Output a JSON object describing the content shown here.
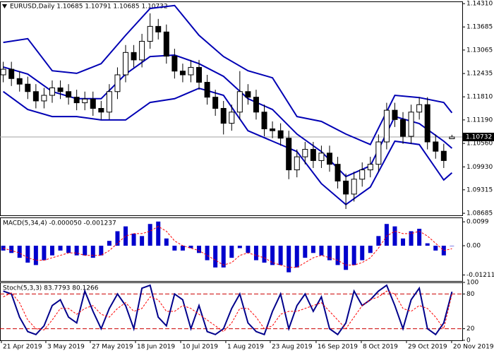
{
  "chart_data": [
    {
      "type": "candlestick",
      "title": "EURUSD,Daily  1.10685 1.10791 1.10685 1.10732",
      "xlim": [
        -0.4,
        55.4
      ],
      "ylim": [
        1.0863,
        1.1437
      ],
      "yticks": [
        {
          "value": 1.1431,
          "label": "1.14310"
        },
        {
          "value": 1.13685,
          "label": "1.13685"
        },
        {
          "value": 1.13065,
          "label": "1.13065"
        },
        {
          "value": 1.12435,
          "label": "1.12435"
        },
        {
          "value": 1.1181,
          "label": "1.11810"
        },
        {
          "value": 1.1119,
          "label": "1.11190"
        },
        {
          "value": 1.1056,
          "label": "1.10560"
        },
        {
          "value": 1.0993,
          "label": "1.09930"
        },
        {
          "value": 1.09315,
          "label": "1.09315"
        },
        {
          "value": 1.08685,
          "label": "1.08685"
        }
      ],
      "last_price": {
        "value": 1.10732,
        "label": "1.10732"
      },
      "up_color": "#ffffff",
      "down_color": "#000000",
      "outline_color": "#000000",
      "open": [
        1.124,
        1.1255,
        1.123,
        1.1215,
        1.1195,
        1.117,
        1.1185,
        1.1205,
        1.1195,
        1.118,
        1.1165,
        1.1175,
        1.115,
        1.114,
        1.1195,
        1.124,
        1.13,
        1.128,
        1.133,
        1.137,
        1.1355,
        1.129,
        1.125,
        1.124,
        1.126,
        1.122,
        1.118,
        1.115,
        1.111,
        1.114,
        1.1195,
        1.118,
        1.114,
        1.1095,
        1.109,
        1.107,
        1.0985,
        1.102,
        1.104,
        1.101,
        1.103,
        1.1,
        1.0955,
        1.092,
        1.096,
        1.0985,
        1.1,
        1.106,
        1.1145,
        1.112,
        1.1075,
        1.114,
        1.116,
        1.106,
        1.1035,
        1.10685
      ],
      "high": [
        1.1275,
        1.1275,
        1.125,
        1.1235,
        1.1215,
        1.1205,
        1.1225,
        1.1225,
        1.1215,
        1.12,
        1.1195,
        1.1195,
        1.117,
        1.1215,
        1.126,
        1.132,
        1.132,
        1.135,
        1.1405,
        1.139,
        1.1375,
        1.131,
        1.127,
        1.128,
        1.128,
        1.124,
        1.12,
        1.117,
        1.116,
        1.125,
        1.1215,
        1.12,
        1.116,
        1.1115,
        1.111,
        1.109,
        1.104,
        1.106,
        1.106,
        1.105,
        1.105,
        1.102,
        1.0975,
        1.098,
        1.1005,
        1.102,
        1.108,
        1.1165,
        1.1165,
        1.114,
        1.116,
        1.118,
        1.118,
        1.108,
        1.1055,
        1.10791
      ],
      "low": [
        1.122,
        1.121,
        1.1195,
        1.1175,
        1.115,
        1.115,
        1.1165,
        1.1175,
        1.116,
        1.1145,
        1.1145,
        1.113,
        1.112,
        1.112,
        1.1175,
        1.122,
        1.126,
        1.126,
        1.131,
        1.1335,
        1.127,
        1.123,
        1.122,
        1.122,
        1.12,
        1.116,
        1.113,
        1.108,
        1.109,
        1.112,
        1.116,
        1.112,
        1.1075,
        1.107,
        1.105,
        1.096,
        1.0965,
        1.1,
        1.099,
        1.099,
        1.098,
        1.0935,
        1.088,
        1.09,
        1.094,
        1.0965,
        1.098,
        1.104,
        1.11,
        1.1055,
        1.1055,
        1.112,
        1.104,
        1.1015,
        1.099,
        1.10685
      ],
      "close": [
        1.1255,
        1.123,
        1.1215,
        1.1195,
        1.117,
        1.1185,
        1.1205,
        1.1195,
        1.118,
        1.1165,
        1.1175,
        1.115,
        1.114,
        1.1195,
        1.124,
        1.13,
        1.128,
        1.133,
        1.137,
        1.1355,
        1.129,
        1.125,
        1.124,
        1.126,
        1.122,
        1.118,
        1.115,
        1.111,
        1.114,
        1.1195,
        1.118,
        1.114,
        1.1095,
        1.109,
        1.107,
        1.0985,
        1.102,
        1.104,
        1.101,
        1.103,
        1.1,
        1.0955,
        1.092,
        1.096,
        1.0985,
        1.1,
        1.106,
        1.1145,
        1.112,
        1.1075,
        1.114,
        1.116,
        1.106,
        1.1035,
        1.101,
        1.10732
      ],
      "bands": [
        {
          "color": "#0000b4",
          "x": [
            0,
            3,
            6,
            9,
            12,
            15,
            18,
            21,
            24,
            27,
            30,
            33,
            36,
            39,
            42,
            45,
            48,
            51,
            54,
            55
          ],
          "values": [
            1.1327,
            1.1337,
            1.1251,
            1.1244,
            1.127,
            1.1346,
            1.1418,
            1.1426,
            1.1346,
            1.1289,
            1.1251,
            1.1232,
            1.1128,
            1.1115,
            1.1081,
            1.1053,
            1.1185,
            1.1179,
            1.1166,
            1.1138
          ]
        },
        {
          "color": "#0000b4",
          "x": [
            0,
            3,
            6,
            9,
            12,
            15,
            18,
            21,
            24,
            27,
            30,
            33,
            36,
            39,
            42,
            45,
            48,
            51,
            54,
            55
          ],
          "values": [
            1.1261,
            1.1242,
            1.1195,
            1.1176,
            1.1176,
            1.1242,
            1.1289,
            1.1293,
            1.127,
            1.1236,
            1.1176,
            1.1147,
            1.1081,
            1.1034,
            1.0967,
            1.0996,
            1.1128,
            1.1109,
            1.1062,
            1.1043
          ]
        },
        {
          "color": "#0000b4",
          "x": [
            0,
            3,
            6,
            9,
            12,
            15,
            18,
            21,
            24,
            27,
            30,
            33,
            36,
            39,
            42,
            45,
            48,
            51,
            54,
            55
          ],
          "values": [
            1.1195,
            1.1147,
            1.1128,
            1.1128,
            1.1119,
            1.1119,
            1.1166,
            1.1176,
            1.1204,
            1.1185,
            1.109,
            1.1062,
            1.1034,
            1.0948,
            1.0892,
            1.0939,
            1.1062,
            1.1053,
            1.0958,
            1.0977
          ]
        }
      ]
    },
    {
      "type": "macd",
      "title": "MACD(5,34,4) -0.000050 -0.001237",
      "xlim": [
        -0.4,
        55.4
      ],
      "ylim": [
        -0.0146,
        0.0117
      ],
      "yticks": [
        0.0099,
        {
          "value": 0,
          "label": "0.00"
        },
        -0.012115
      ],
      "series": [
        {
          "color": "#0000cc",
          "style": "bar",
          "values": [
            -0.002,
            -0.003,
            -0.005,
            -0.007,
            -0.008,
            -0.006,
            -0.004,
            -0.002,
            -0.003,
            -0.004,
            -0.004,
            -0.005,
            -0.004,
            0.002,
            0.006,
            0.008,
            0.005,
            0.004,
            0.009,
            0.01,
            0.003,
            -0.002,
            -0.002,
            -0.001,
            -0.003,
            -0.006,
            -0.009,
            -0.009,
            -0.005,
            -0.001,
            -0.003,
            -0.006,
            -0.007,
            -0.008,
            -0.008,
            -0.011,
            -0.009,
            -0.005,
            -0.003,
            -0.004,
            -0.006,
            -0.008,
            -0.01,
            -0.008,
            -0.006,
            -0.003,
            0.004,
            0.009,
            0.008,
            0.003,
            0.006,
            0.007,
            0.001,
            -0.002,
            -0.004,
            -5e-05
          ]
        },
        {
          "color": "#ff0000",
          "style": "dashed",
          "values": [
            -0.001,
            -0.002,
            -0.003,
            -0.005,
            -0.006,
            -0.006,
            -0.005,
            -0.004,
            -0.003,
            -0.003,
            -0.004,
            -0.004,
            -0.004,
            -0.002,
            0.001,
            0.004,
            0.005,
            0.005,
            0.006,
            0.008,
            0.006,
            0.002,
            0.0,
            -0.001,
            -0.002,
            -0.004,
            -0.006,
            -0.008,
            -0.007,
            -0.004,
            -0.003,
            -0.004,
            -0.005,
            -0.007,
            -0.008,
            -0.009,
            -0.009,
            -0.007,
            -0.005,
            -0.004,
            -0.005,
            -0.006,
            -0.008,
            -0.008,
            -0.007,
            -0.005,
            -0.001,
            0.004,
            0.006,
            0.005,
            0.005,
            0.006,
            0.004,
            0.001,
            -0.002,
            -0.001237
          ]
        }
      ]
    },
    {
      "type": "stochastic",
      "title": "Stoch(5,3,3) 83.7793 80.1266",
      "xlim": [
        -0.4,
        55.4
      ],
      "ylim": [
        0,
        100
      ],
      "yticks": [
        100,
        80,
        20,
        0
      ],
      "levels": [
        20,
        80
      ],
      "level_color": "#cc0000",
      "xticks": [
        {
          "value": -0.23,
          "label": "21 Apr 2019"
        },
        {
          "value": 5.22,
          "label": "3 May 2019"
        },
        {
          "value": 10.67,
          "label": "27 May 2019"
        },
        {
          "value": 16.21,
          "label": "18 Jun 2019"
        },
        {
          "value": 21.75,
          "label": "10 Jul 2019"
        },
        {
          "value": 27.28,
          "label": "1 Aug 2019"
        },
        {
          "value": 32.73,
          "label": "23 Aug 2019"
        },
        {
          "value": 38.35,
          "label": "16 Sep 2019"
        },
        {
          "value": 43.89,
          "label": "8 Oct 2019"
        },
        {
          "value": 49.43,
          "label": "29 Oct 2019"
        },
        {
          "value": 54.96,
          "label": "20 Nov 2019"
        }
      ],
      "series": [
        {
          "color": "#00008b",
          "style": "line",
          "values": [
            85,
            80,
            40,
            15,
            10,
            25,
            60,
            70,
            40,
            30,
            85,
            50,
            20,
            55,
            80,
            60,
            20,
            90,
            95,
            40,
            25,
            80,
            70,
            20,
            60,
            15,
            10,
            20,
            55,
            80,
            30,
            15,
            10,
            50,
            80,
            20,
            60,
            80,
            50,
            75,
            20,
            10,
            30,
            85,
            60,
            70,
            85,
            95,
            60,
            20,
            70,
            90,
            20,
            10,
            30,
            83.7793
          ]
        },
        {
          "color": "#ff0000",
          "style": "dashed",
          "values": [
            75,
            82,
            65,
            35,
            20,
            18,
            35,
            55,
            55,
            45,
            55,
            60,
            45,
            40,
            55,
            65,
            50,
            55,
            75,
            70,
            50,
            50,
            60,
            55,
            45,
            35,
            25,
            15,
            30,
            55,
            55,
            40,
            20,
            25,
            45,
            50,
            50,
            55,
            60,
            65,
            50,
            35,
            20,
            40,
            60,
            70,
            75,
            85,
            80,
            55,
            50,
            60,
            55,
            40,
            20,
            80.1266
          ]
        }
      ]
    }
  ]
}
